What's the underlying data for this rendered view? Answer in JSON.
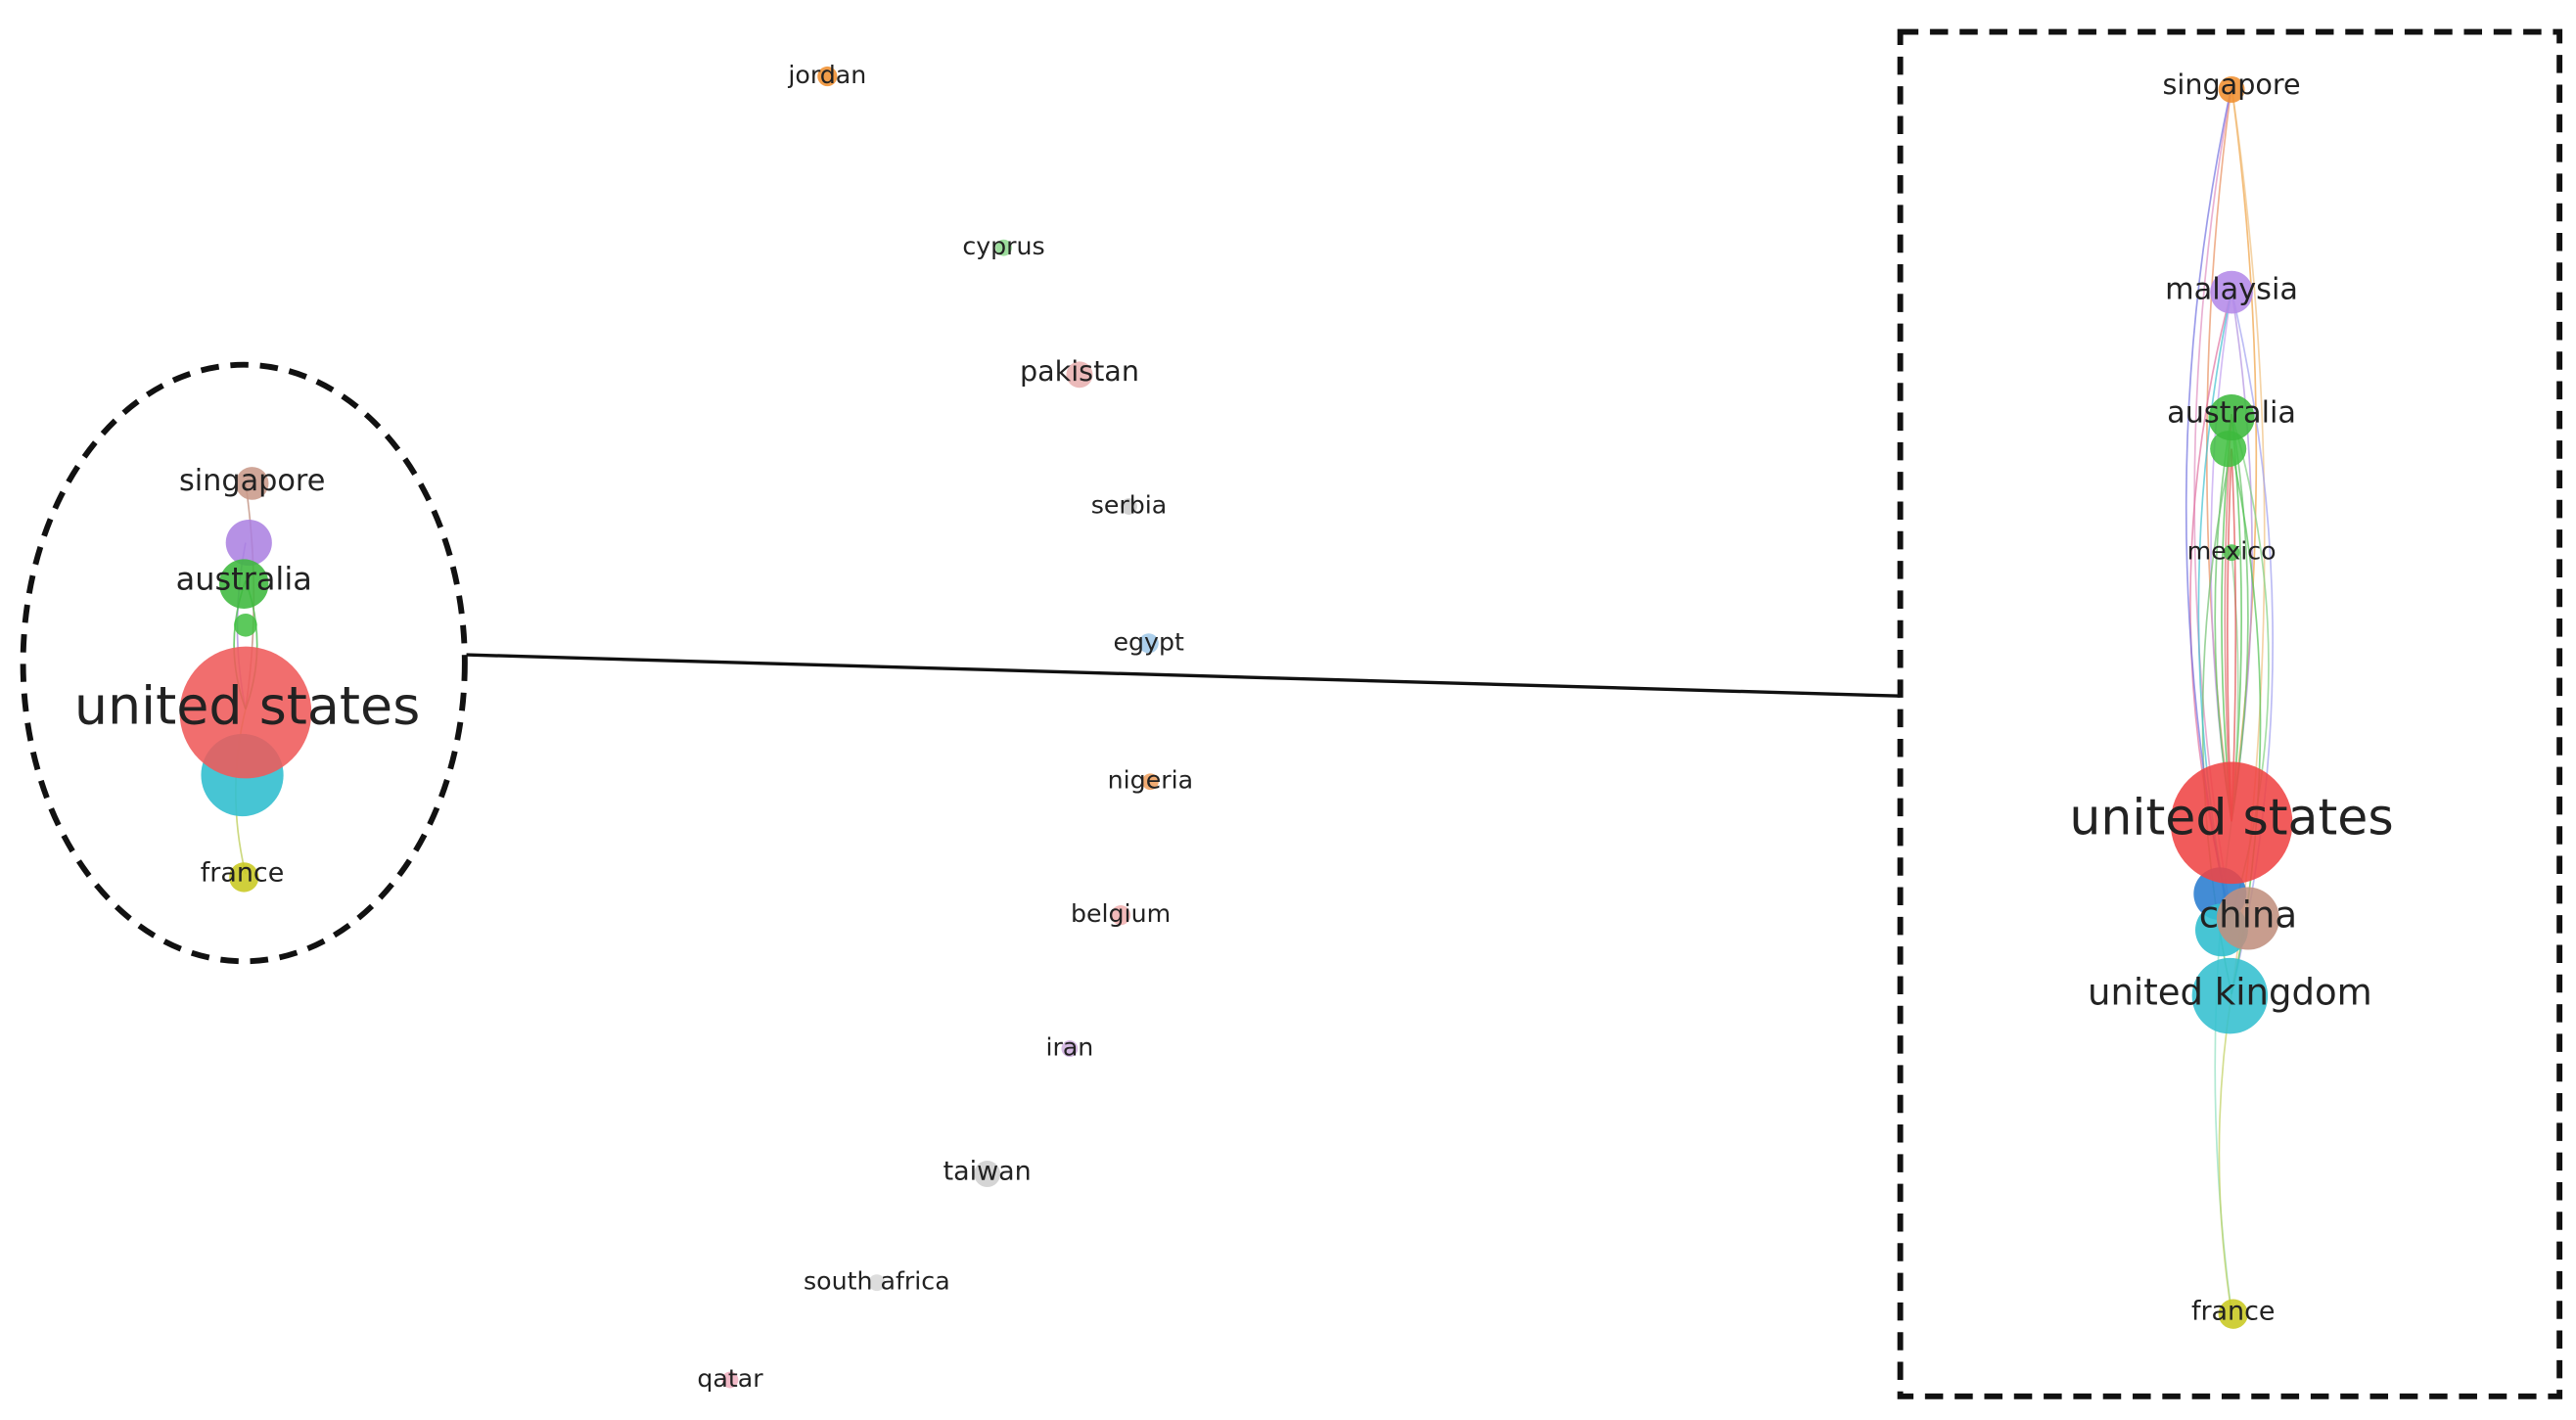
{
  "overview_cluster": {
    "nodes": [
      {
        "label": "singapore"
      },
      {
        "label": "australia"
      },
      {
        "label": "united states"
      },
      {
        "label": "france"
      }
    ]
  },
  "isolated_nodes": [
    {
      "label": "jordan"
    },
    {
      "label": "cyprus"
    },
    {
      "label": "pakistan"
    },
    {
      "label": "serbia"
    },
    {
      "label": "egypt"
    },
    {
      "label": "nigeria"
    },
    {
      "label": "belgium"
    },
    {
      "label": "iran"
    },
    {
      "label": "taiwan"
    },
    {
      "label": "south africa"
    },
    {
      "label": "qatar"
    }
  ],
  "zoom_cluster": {
    "nodes": [
      {
        "label": "singapore"
      },
      {
        "label": "malaysia"
      },
      {
        "label": "australia"
      },
      {
        "label": "mexico"
      },
      {
        "label": "united states"
      },
      {
        "label": "china"
      },
      {
        "label": "united kingdom"
      },
      {
        "label": "france"
      }
    ]
  }
}
